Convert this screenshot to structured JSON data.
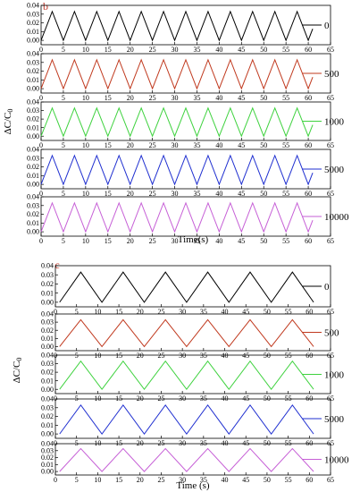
{
  "colors": {
    "black": "#000000",
    "red": "#c0391e",
    "green": "#3fd23f",
    "blue": "#1f2fd0",
    "magenta": "#c65fd6"
  },
  "chart_data": [
    {
      "type": "line",
      "panel_label": "b",
      "ylabel": "ΔC/C",
      "ylabel_sub": "0",
      "xlabel": "Time(s)",
      "xlim": [
        0,
        65
      ],
      "ylim": [
        -0.005,
        0.04
      ],
      "x_ticks": [
        0,
        5,
        10,
        15,
        20,
        25,
        30,
        35,
        40,
        45,
        50,
        55,
        60,
        65
      ],
      "y_ticks": [
        0.0,
        0.01,
        0.02,
        0.03,
        0.04
      ],
      "y_tick_labels": [
        "0.00",
        "0.01",
        "0.02",
        "0.03",
        "0.04"
      ],
      "waveform": {
        "shape": "triangle",
        "period_s": 5.0,
        "min": 0.0,
        "max": 0.033,
        "first_peak_s": 2.5,
        "x_start": 0.0,
        "x_end": 61.0
      },
      "series": [
        {
          "name": "0",
          "color": "black"
        },
        {
          "name": "500",
          "color": "red"
        },
        {
          "name": "1000",
          "color": "green"
        },
        {
          "name": "5000",
          "color": "blue"
        },
        {
          "name": "10000",
          "color": "magenta"
        }
      ]
    },
    {
      "type": "line",
      "panel_label": "c",
      "ylabel": "ΔC/C",
      "ylabel_sub": "0",
      "xlabel": "Time (s)",
      "xlim": [
        0,
        65
      ],
      "ylim": [
        -0.005,
        0.04
      ],
      "x_ticks": [
        0,
        5,
        10,
        15,
        20,
        25,
        30,
        35,
        40,
        45,
        50,
        55,
        60,
        65
      ],
      "y_ticks": [
        0.0,
        0.01,
        0.02,
        0.03,
        0.04
      ],
      "y_tick_labels": [
        "0.00",
        "0.01",
        "0.02",
        "0.03",
        "0.04"
      ],
      "waveform": {
        "shape": "triangle",
        "period_s": 10.0,
        "min": 0.0,
        "max": 0.033,
        "first_peak_s": 6.0,
        "x_start": 1.0,
        "x_end": 61.0
      },
      "series": [
        {
          "name": "0",
          "color": "black"
        },
        {
          "name": "500",
          "color": "red"
        },
        {
          "name": "1000",
          "color": "green"
        },
        {
          "name": "5000",
          "color": "blue"
        },
        {
          "name": "10000",
          "color": "magenta"
        }
      ]
    }
  ]
}
